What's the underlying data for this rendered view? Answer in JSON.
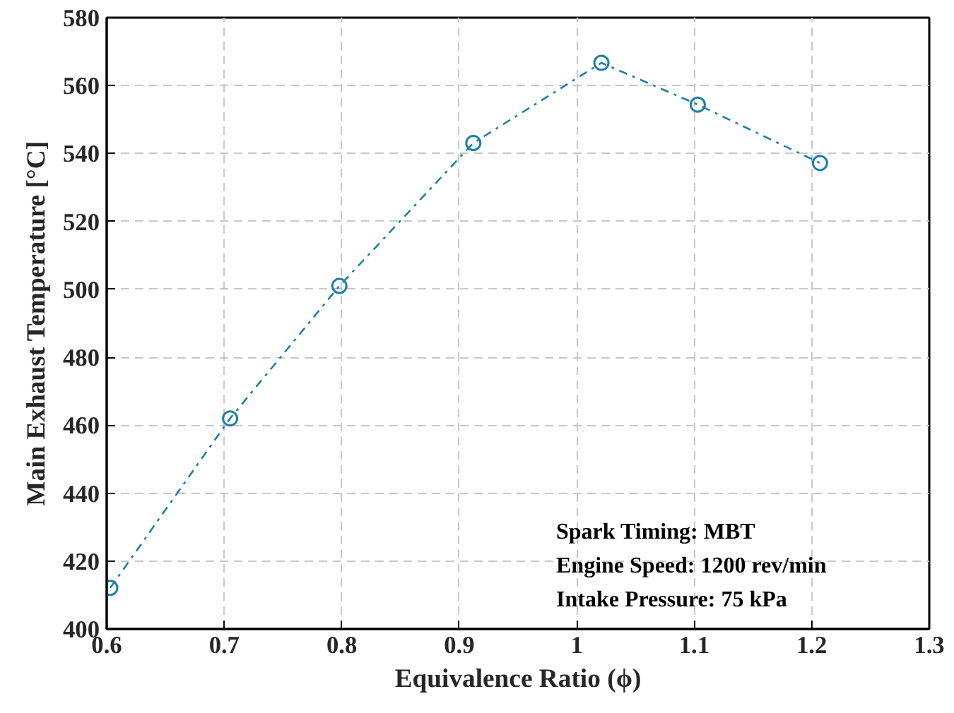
{
  "chart_data": {
    "type": "line",
    "xlabel": "Equivalence Ratio (ϕ)",
    "ylabel": "Main Exhaust Temperature [°C]",
    "x": [
      0.603,
      0.705,
      0.798,
      0.912,
      1.021,
      1.103,
      1.207
    ],
    "series": [
      {
        "color": "#1f7fa6",
        "values": [
          412.1,
          462.0,
          501.0,
          543.1,
          566.7,
          554.4,
          537.2
        ]
      }
    ],
    "xlim": [
      0.6,
      1.3
    ],
    "xticks": [
      0.6,
      0.7,
      0.8,
      0.9,
      {
        "value": 1.0,
        "label": "1"
      },
      1.1,
      1.2,
      1.3
    ],
    "ylim": [
      400,
      580
    ],
    "yticks": [
      400,
      420,
      440,
      460,
      480,
      500,
      520,
      540,
      560,
      580
    ],
    "grid": true,
    "marker": "circle",
    "line_style": "dashdot",
    "annotations": [
      "Spark Timing: MBT",
      "Engine Speed: 1200 rev/min",
      "Intake Pressure: 75 kPa"
    ]
  }
}
